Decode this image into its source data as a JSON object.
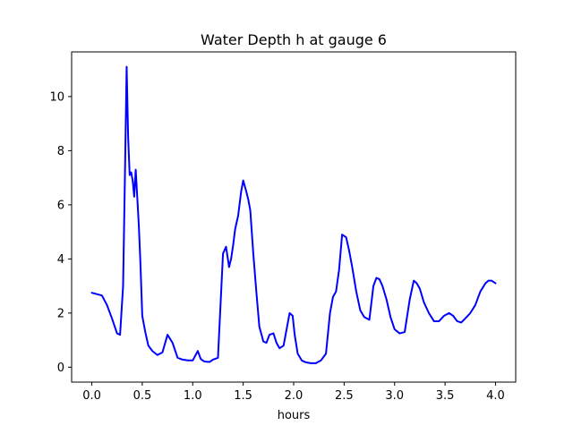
{
  "chart_data": {
    "type": "line",
    "title": "Water Depth h at gauge 6",
    "xlabel": "hours",
    "ylabel": "",
    "xlim": [
      -0.2,
      4.2
    ],
    "ylim": [
      -0.55,
      11.65
    ],
    "xticks": [
      0.0,
      0.5,
      1.0,
      1.5,
      2.0,
      2.5,
      3.0,
      3.5,
      4.0
    ],
    "xtick_labels": [
      "0.0",
      "0.5",
      "1.0",
      "1.5",
      "2.0",
      "2.5",
      "3.0",
      "3.5",
      "4.0"
    ],
    "yticks": [
      0,
      2,
      4,
      6,
      8,
      10
    ],
    "ytick_labels": [
      "0",
      "2",
      "4",
      "6",
      "8",
      "10"
    ],
    "grid": false,
    "series": [
      {
        "name": "",
        "color": "#0000ff",
        "x": [
          0.0,
          0.05,
          0.1,
          0.15,
          0.2,
          0.25,
          0.28,
          0.31,
          0.33,
          0.345,
          0.36,
          0.375,
          0.39,
          0.405,
          0.42,
          0.435,
          0.45,
          0.465,
          0.48,
          0.5,
          0.53,
          0.56,
          0.6,
          0.65,
          0.7,
          0.75,
          0.8,
          0.85,
          0.9,
          0.95,
          1.0,
          1.05,
          1.08,
          1.11,
          1.14,
          1.17,
          1.2,
          1.25,
          1.3,
          1.33,
          1.36,
          1.38,
          1.4,
          1.42,
          1.45,
          1.48,
          1.5,
          1.53,
          1.55,
          1.57,
          1.6,
          1.63,
          1.66,
          1.7,
          1.73,
          1.76,
          1.8,
          1.83,
          1.86,
          1.9,
          1.93,
          1.96,
          1.99,
          2.01,
          2.04,
          2.08,
          2.12,
          2.17,
          2.22,
          2.27,
          2.32,
          2.36,
          2.39,
          2.42,
          2.45,
          2.48,
          2.52,
          2.55,
          2.58,
          2.62,
          2.66,
          2.7,
          2.75,
          2.79,
          2.82,
          2.85,
          2.88,
          2.92,
          2.96,
          3.0,
          3.05,
          3.1,
          3.15,
          3.19,
          3.22,
          3.25,
          3.29,
          3.34,
          3.39,
          3.44,
          3.49,
          3.54,
          3.58,
          3.62,
          3.66,
          3.7,
          3.75,
          3.8,
          3.85,
          3.9,
          3.93,
          3.96,
          3.98,
          4.0
        ],
        "y": [
          2.75,
          2.7,
          2.65,
          2.3,
          1.8,
          1.25,
          1.2,
          3.0,
          7.5,
          11.1,
          8.5,
          7.1,
          7.2,
          6.9,
          6.3,
          7.3,
          6.3,
          5.3,
          4.0,
          1.9,
          1.3,
          0.8,
          0.6,
          0.45,
          0.55,
          1.2,
          0.9,
          0.35,
          0.28,
          0.25,
          0.25,
          0.6,
          0.3,
          0.22,
          0.2,
          0.2,
          0.28,
          0.35,
          4.2,
          4.45,
          3.7,
          4.0,
          4.5,
          5.1,
          5.6,
          6.5,
          6.9,
          6.5,
          6.2,
          5.8,
          4.2,
          2.8,
          1.5,
          0.95,
          0.9,
          1.2,
          1.25,
          0.9,
          0.7,
          0.8,
          1.4,
          2.0,
          1.9,
          1.2,
          0.5,
          0.25,
          0.18,
          0.15,
          0.15,
          0.25,
          0.5,
          2.0,
          2.6,
          2.8,
          3.6,
          4.9,
          4.8,
          4.3,
          3.7,
          2.8,
          2.1,
          1.85,
          1.75,
          3.0,
          3.3,
          3.25,
          3.0,
          2.5,
          1.85,
          1.4,
          1.25,
          1.3,
          2.5,
          3.2,
          3.1,
          2.9,
          2.4,
          2.0,
          1.7,
          1.7,
          1.9,
          2.0,
          1.9,
          1.7,
          1.65,
          1.8,
          2.0,
          2.3,
          2.8,
          3.1,
          3.2,
          3.2,
          3.15,
          3.1
        ]
      }
    ]
  }
}
